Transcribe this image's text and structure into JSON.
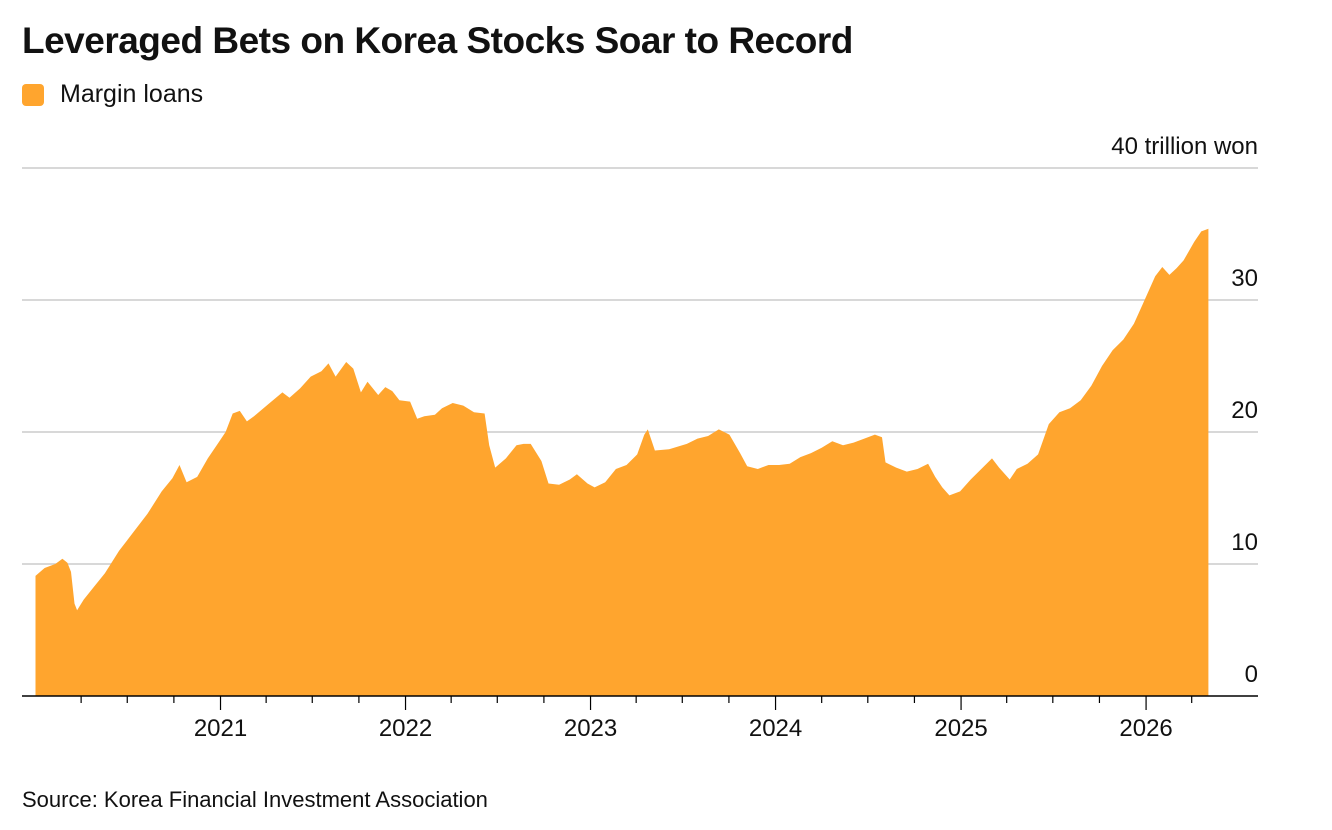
{
  "chart_title": "Leveraged Bets on Korea Stocks Soar to Record",
  "source": "Source: Korea Financial Investment Association",
  "colors": {
    "series": "#ffa52e",
    "grid": "#cccccc",
    "axis": "#000000"
  },
  "chart_data": {
    "type": "area",
    "title": "Leveraged Bets on Korea Stocks Soar to Record",
    "legend": {
      "position": "top-left",
      "entries": [
        "Margin loans"
      ]
    },
    "y_unit_label": "40 trillion won",
    "ylim": [
      0,
      40
    ],
    "yticks": [
      {
        "value": 0,
        "label": "0"
      },
      {
        "value": 10,
        "label": "10"
      },
      {
        "value": 20,
        "label": "20"
      },
      {
        "value": 30,
        "label": "30"
      },
      {
        "value": 40,
        "label": "40 trillion won"
      }
    ],
    "xlim": [
      "2020-01-01",
      "2026-05-15"
    ],
    "xticks": [
      {
        "value": "2021-01-01",
        "label": "2021"
      },
      {
        "value": "2022-01-01",
        "label": "2022"
      },
      {
        "value": "2023-01-01",
        "label": "2023"
      },
      {
        "value": "2024-01-01",
        "label": "2024"
      },
      {
        "value": "2025-01-01",
        "label": "2025"
      },
      {
        "value": "2026-01-01",
        "label": "2026"
      }
    ],
    "grid": true,
    "series": [
      {
        "name": "Margin loans",
        "points": [
          [
            "2020-01-02",
            9.1
          ],
          [
            "2020-01-20",
            9.7
          ],
          [
            "2020-02-10",
            10.0
          ],
          [
            "2020-02-24",
            10.4
          ],
          [
            "2020-03-05",
            10.1
          ],
          [
            "2020-03-12",
            9.4
          ],
          [
            "2020-03-19",
            7.0
          ],
          [
            "2020-03-24",
            6.5
          ],
          [
            "2020-04-06",
            7.3
          ],
          [
            "2020-04-27",
            8.3
          ],
          [
            "2020-05-18",
            9.3
          ],
          [
            "2020-06-15",
            11.0
          ],
          [
            "2020-07-13",
            12.4
          ],
          [
            "2020-08-10",
            13.8
          ],
          [
            "2020-09-07",
            15.5
          ],
          [
            "2020-09-28",
            16.5
          ],
          [
            "2020-10-12",
            17.5
          ],
          [
            "2020-10-26",
            16.2
          ],
          [
            "2020-11-16",
            16.6
          ],
          [
            "2020-12-07",
            18.0
          ],
          [
            "2020-12-28",
            19.2
          ],
          [
            "2021-01-11",
            20.0
          ],
          [
            "2021-01-25",
            21.4
          ],
          [
            "2021-02-08",
            21.6
          ],
          [
            "2021-02-22",
            20.8
          ],
          [
            "2021-03-08",
            21.2
          ],
          [
            "2021-04-05",
            22.1
          ],
          [
            "2021-05-03",
            23.0
          ],
          [
            "2021-05-17",
            22.6
          ],
          [
            "2021-06-07",
            23.3
          ],
          [
            "2021-06-28",
            24.2
          ],
          [
            "2021-07-19",
            24.6
          ],
          [
            "2021-08-02",
            25.2
          ],
          [
            "2021-08-16",
            24.2
          ],
          [
            "2021-09-06",
            25.3
          ],
          [
            "2021-09-20",
            24.8
          ],
          [
            "2021-10-05",
            23.0
          ],
          [
            "2021-10-18",
            23.8
          ],
          [
            "2021-11-08",
            22.8
          ],
          [
            "2021-11-22",
            23.4
          ],
          [
            "2021-12-06",
            23.1
          ],
          [
            "2021-12-20",
            22.4
          ],
          [
            "2022-01-10",
            22.3
          ],
          [
            "2022-01-24",
            21.0
          ],
          [
            "2022-02-07",
            21.2
          ],
          [
            "2022-02-28",
            21.3
          ],
          [
            "2022-03-14",
            21.8
          ],
          [
            "2022-04-04",
            22.2
          ],
          [
            "2022-04-25",
            22.0
          ],
          [
            "2022-05-16",
            21.5
          ],
          [
            "2022-06-06",
            21.4
          ],
          [
            "2022-06-15",
            19.0
          ],
          [
            "2022-06-27",
            17.3
          ],
          [
            "2022-07-18",
            18.0
          ],
          [
            "2022-08-08",
            19.0
          ],
          [
            "2022-08-22",
            19.1
          ],
          [
            "2022-09-05",
            19.1
          ],
          [
            "2022-09-26",
            17.8
          ],
          [
            "2022-10-10",
            16.1
          ],
          [
            "2022-10-31",
            16.0
          ],
          [
            "2022-11-21",
            16.4
          ],
          [
            "2022-12-05",
            16.8
          ],
          [
            "2022-12-26",
            16.1
          ],
          [
            "2023-01-09",
            15.8
          ],
          [
            "2023-01-30",
            16.2
          ],
          [
            "2023-02-20",
            17.2
          ],
          [
            "2023-03-13",
            17.5
          ],
          [
            "2023-04-03",
            18.3
          ],
          [
            "2023-04-17",
            19.8
          ],
          [
            "2023-04-24",
            20.2
          ],
          [
            "2023-05-08",
            18.6
          ],
          [
            "2023-06-05",
            18.7
          ],
          [
            "2023-07-10",
            19.1
          ],
          [
            "2023-07-31",
            19.5
          ],
          [
            "2023-08-21",
            19.7
          ],
          [
            "2023-09-11",
            20.2
          ],
          [
            "2023-10-02",
            19.8
          ],
          [
            "2023-10-23",
            18.4
          ],
          [
            "2023-11-06",
            17.4
          ],
          [
            "2023-11-27",
            17.2
          ],
          [
            "2023-12-18",
            17.5
          ],
          [
            "2024-01-08",
            17.5
          ],
          [
            "2024-01-29",
            17.6
          ],
          [
            "2024-02-19",
            18.1
          ],
          [
            "2024-03-11",
            18.4
          ],
          [
            "2024-04-01",
            18.8
          ],
          [
            "2024-04-22",
            19.3
          ],
          [
            "2024-05-13",
            19.0
          ],
          [
            "2024-06-03",
            19.2
          ],
          [
            "2024-06-24",
            19.5
          ],
          [
            "2024-07-15",
            19.8
          ],
          [
            "2024-07-29",
            19.6
          ],
          [
            "2024-08-05",
            17.7
          ],
          [
            "2024-08-26",
            17.3
          ],
          [
            "2024-09-16",
            17.0
          ],
          [
            "2024-10-07",
            17.2
          ],
          [
            "2024-10-28",
            17.6
          ],
          [
            "2024-11-11",
            16.6
          ],
          [
            "2024-11-25",
            15.8
          ],
          [
            "2024-12-09",
            15.2
          ],
          [
            "2024-12-30",
            15.5
          ],
          [
            "2025-01-20",
            16.4
          ],
          [
            "2025-02-10",
            17.2
          ],
          [
            "2025-03-03",
            18.0
          ],
          [
            "2025-03-17",
            17.3
          ],
          [
            "2025-04-07",
            16.4
          ],
          [
            "2025-04-21",
            17.2
          ],
          [
            "2025-05-12",
            17.6
          ],
          [
            "2025-06-02",
            18.3
          ],
          [
            "2025-06-23",
            20.6
          ],
          [
            "2025-07-14",
            21.5
          ],
          [
            "2025-08-04",
            21.8
          ],
          [
            "2025-08-25",
            22.4
          ],
          [
            "2025-09-15",
            23.5
          ],
          [
            "2025-10-06",
            25.0
          ],
          [
            "2025-10-27",
            26.2
          ],
          [
            "2025-11-17",
            27.0
          ],
          [
            "2025-12-08",
            28.2
          ],
          [
            "2025-12-29",
            30.0
          ],
          [
            "2026-01-19",
            31.8
          ],
          [
            "2026-02-02",
            32.5
          ],
          [
            "2026-02-16",
            31.9
          ],
          [
            "2026-03-02",
            32.4
          ],
          [
            "2026-03-16",
            33.0
          ],
          [
            "2026-04-06",
            34.4
          ],
          [
            "2026-04-20",
            35.2
          ],
          [
            "2026-05-04",
            35.4
          ]
        ]
      }
    ]
  }
}
